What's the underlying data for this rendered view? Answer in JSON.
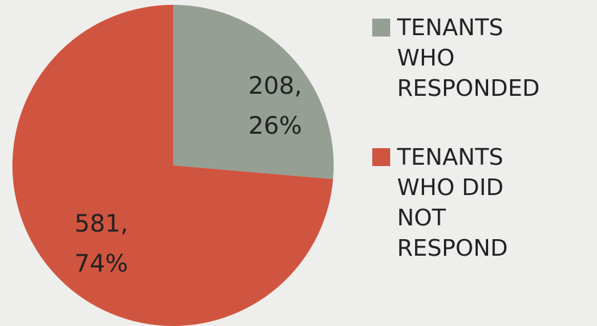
{
  "chart_data": {
    "type": "pie",
    "categories": [
      "TENANTS WHO RESPONDED",
      "TENANTS WHO DID NOT RESPOND"
    ],
    "values": [
      208,
      581
    ],
    "value_labels": [
      "208, 26%",
      "581, 74%"
    ],
    "colors": [
      "#959f94",
      "#d05540"
    ],
    "legend": "right"
  }
}
